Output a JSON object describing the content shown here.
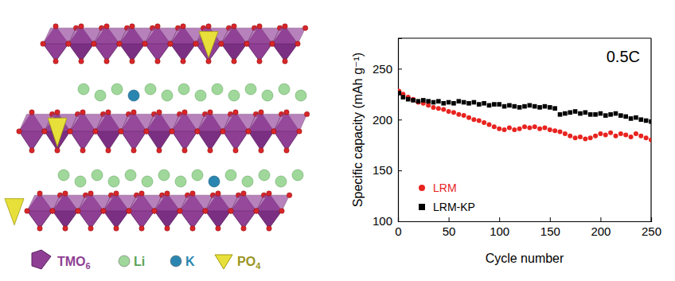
{
  "chart_data": {
    "type": "scatter",
    "annotations": [
      "0.5C"
    ],
    "x_label": "Cycle number",
    "y_label": "Specific capacity (mAh g⁻¹)",
    "x": [
      1,
      5,
      10,
      15,
      20,
      25,
      30,
      35,
      40,
      45,
      50,
      55,
      60,
      65,
      70,
      75,
      80,
      85,
      90,
      95,
      100,
      105,
      110,
      115,
      120,
      125,
      130,
      135,
      140,
      145,
      150,
      155,
      160,
      165,
      170,
      175,
      180,
      185,
      190,
      195,
      200,
      205,
      210,
      215,
      220,
      225,
      230,
      235,
      240,
      245,
      250
    ],
    "series": [
      {
        "name": "LRM",
        "color": "#e8231f",
        "marker": "circle",
        "values": [
          228,
          225,
          222,
          220,
          217,
          216,
          214,
          212,
          211,
          210,
          208,
          207,
          205,
          204,
          202,
          200,
          199,
          197,
          195,
          193,
          191,
          190,
          192,
          190,
          191,
          193,
          192,
          193,
          191,
          192,
          190,
          189,
          188,
          186,
          184,
          182,
          183,
          181,
          182,
          184,
          186,
          185,
          187,
          184,
          186,
          185,
          183,
          186,
          184,
          182,
          180
        ]
      },
      {
        "name": "LRM-KP",
        "color": "#000000",
        "marker": "square",
        "values": [
          226,
          222,
          220,
          219,
          218,
          219,
          218,
          217,
          218,
          216,
          217,
          216,
          218,
          217,
          216,
          217,
          215,
          216,
          214,
          215,
          215,
          213,
          214,
          213,
          212,
          213,
          214,
          213,
          212,
          213,
          212,
          211,
          205,
          206,
          207,
          208,
          206,
          207,
          205,
          205,
          206,
          204,
          205,
          206,
          204,
          203,
          201,
          202,
          200,
          199,
          198
        ]
      }
    ],
    "xlim": [
      0,
      250
    ],
    "xticks": [
      0,
      50,
      100,
      150,
      200,
      250
    ],
    "ylim": [
      100,
      280
    ],
    "yticks": [
      100,
      150,
      200,
      250
    ],
    "grid": false,
    "legend": "lower left"
  },
  "diagram": {
    "legend": [
      {
        "label": "TMO6",
        "color": "#8e3f93"
      },
      {
        "label": "Li",
        "color": "#9fd89a"
      },
      {
        "label": "K",
        "color": "#2a86b0"
      },
      {
        "label": "PO4",
        "color": "#e8e03a"
      }
    ]
  }
}
